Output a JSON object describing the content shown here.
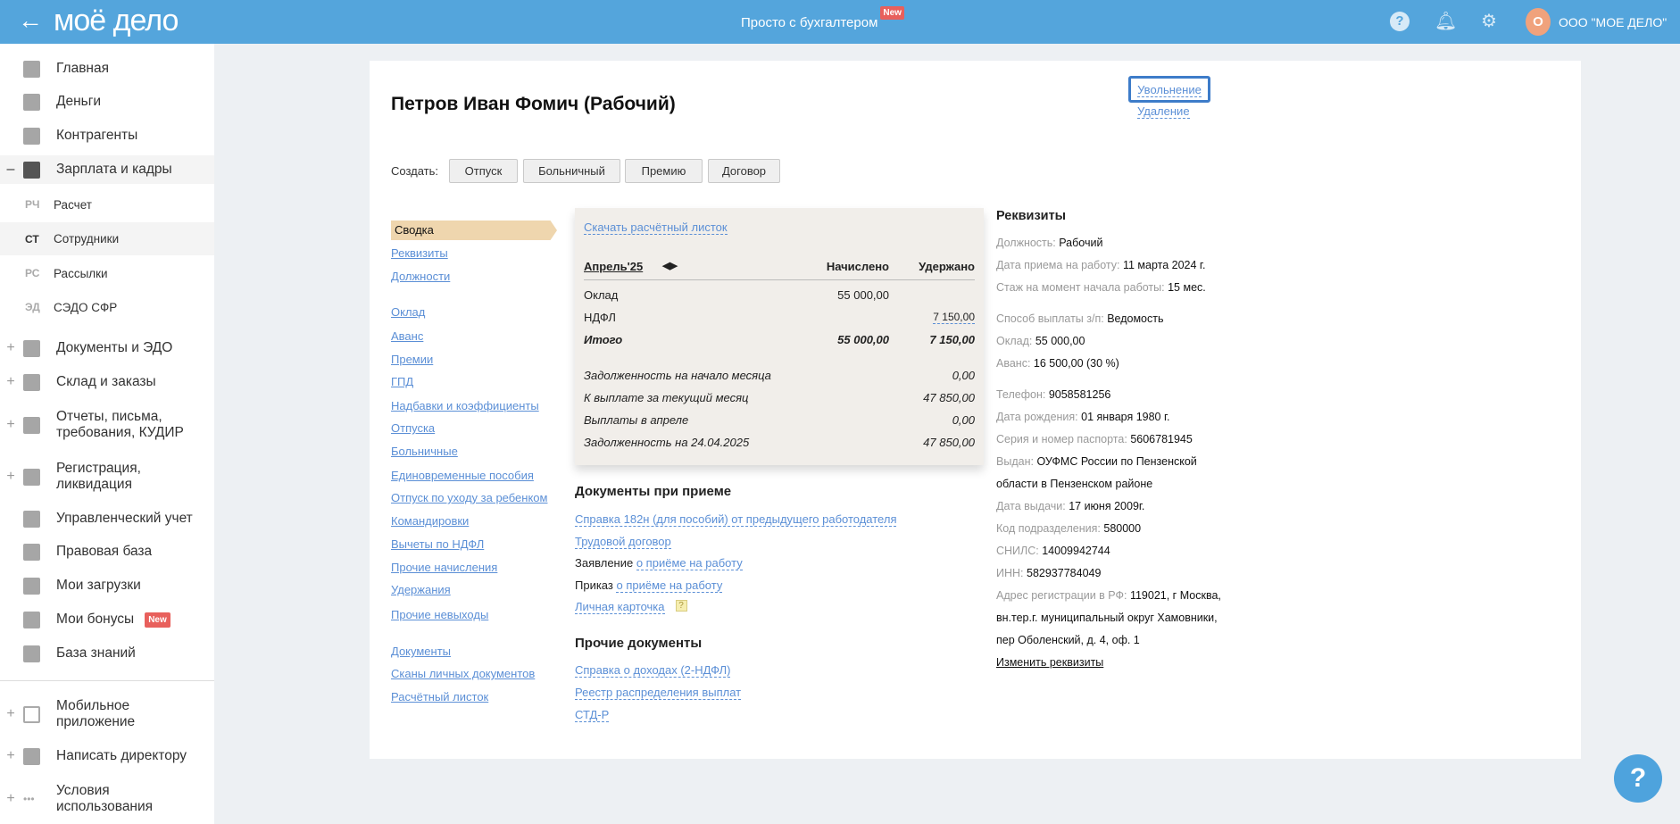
{
  "header": {
    "logo": "моё дело",
    "promo": "Просто с бухгалтером",
    "promo_badge": "New",
    "avatar_letter": "О",
    "org": "ООО \"МОЕ ДЕЛО\"",
    "color": "#54a5dc"
  },
  "sidebar": {
    "items": [
      {
        "label": "Главная"
      },
      {
        "label": "Деньги"
      },
      {
        "label": "Контрагенты"
      },
      {
        "label": "Зарплата и кадры",
        "prefix": "–"
      },
      {
        "abbr": "РЧ",
        "label": "Расчет"
      },
      {
        "abbr": "СТ",
        "label": "Сотрудники"
      },
      {
        "abbr": "РС",
        "label": "Рассылки"
      },
      {
        "abbr": "ЭД",
        "label": "СЭДО СФР"
      },
      {
        "label": "Документы и ЭДО",
        "prefix": "+"
      },
      {
        "label": "Склад и заказы",
        "prefix": "+"
      },
      {
        "label": "Отчеты, письма,",
        "label2": "требования, КУДИР",
        "prefix": "+"
      },
      {
        "label": "Регистрация,",
        "label2": "ликвидация",
        "prefix": "+"
      },
      {
        "label": "Управленческий учет"
      },
      {
        "label": "Правовая база"
      },
      {
        "label": "Мои загрузки"
      },
      {
        "label": "Мои бонусы",
        "badge": "New"
      },
      {
        "label": "База знаний"
      },
      {
        "label": "Мобильное",
        "label2": "приложение",
        "prefix": "+"
      },
      {
        "label": "Написать директору",
        "prefix": "+"
      },
      {
        "label": "Условия",
        "label2": "использования",
        "prefix": "+"
      }
    ]
  },
  "page": {
    "title": "Петров Иван Фомич (Рабочий)",
    "dismiss": "Увольнение",
    "delete": "Удаление",
    "create_label": "Создать:",
    "create_buttons": [
      "Отпуск",
      "Больничный",
      "Премию",
      "Договор"
    ]
  },
  "nav": {
    "active": "Сводка",
    "items": [
      "Реквизиты",
      "Должности",
      "Оклад",
      "Аванс",
      "Премии",
      "ГПД",
      "Надбавки и коэффициенты",
      "Отпуска",
      "Больничные",
      "Единовременные пособия",
      "Отпуск по уходу за ребенком",
      "Командировки",
      "Вычеты по НДФЛ",
      "Прочие начисления",
      "Удержания",
      "Прочие невыходы",
      "Документы",
      "Сканы личных документов",
      "Расчётный листок"
    ]
  },
  "summary": {
    "download": "Скачать расчётный листок",
    "month": "Апрель'25",
    "col1": "Начислено",
    "col2": "Удержано",
    "rows": [
      {
        "label": "Оклад",
        "accrued": "55 000,00",
        "withheld": ""
      },
      {
        "label": "НДФЛ",
        "accrued": "",
        "withheld": "7 150,00"
      },
      {
        "label": "Итого",
        "accrued": "55 000,00",
        "withheld": "7 150,00"
      }
    ],
    "totals": [
      {
        "label": "Задолженность на начало месяца",
        "value": "0,00"
      },
      {
        "label": "К выплате за текущий месяц",
        "value": "47 850,00"
      },
      {
        "label": "Выплаты в апреле",
        "value": "0,00"
      },
      {
        "label": "Задолженность на 24.04.2025",
        "value": "47 850,00"
      }
    ]
  },
  "hire_docs": {
    "title": "Документы при приеме",
    "items": [
      {
        "link": "Справка 182н (для пособий) от предыдущего работодателя"
      },
      {
        "link": "Трудовой договор"
      },
      {
        "prefix": "Заявление",
        "link": "о приёме на работу"
      },
      {
        "prefix": "Приказ",
        "link": "о приёме на работу"
      },
      {
        "link": "Личная карточка",
        "hint": "?"
      }
    ]
  },
  "other_docs": {
    "title": "Прочие документы",
    "items": [
      "Справка о доходах (2-НДФЛ)",
      "Реестр распределения выплат",
      "СТД-Р"
    ]
  },
  "requisites": {
    "title": "Реквизиты",
    "rows": [
      {
        "k": "Должность:",
        "v": "Рабочий"
      },
      {
        "k": "Дата приема на работу:",
        "v": "11 марта 2024 г."
      },
      {
        "k": "Стаж на момент начала работы:",
        "v": "15 мес."
      },
      {
        "k": "Способ выплаты з/п:",
        "v": "Ведомость"
      },
      {
        "k": "Оклад:",
        "v": "55 000,00"
      },
      {
        "k": "Аванс:",
        "v": "16 500,00 (30 %)"
      },
      {
        "k": "Телефон:",
        "v": "9058581256"
      },
      {
        "k": "Дата рождения:",
        "v": "01 января 1980 г."
      },
      {
        "k": "Серия и номер паспорта:",
        "v": "5606781945"
      },
      {
        "k": "Выдан:",
        "v": "ОУФМС России по Пензенской",
        "v2": "области в Пензенском районе"
      },
      {
        "k": "Дата выдачи:",
        "v": "17 июня 2009г."
      },
      {
        "k": "Код подразделения:",
        "v": "580000"
      },
      {
        "k": "СНИЛС:",
        "v": "14009942744"
      },
      {
        "k": "ИНН:",
        "v": "582937784049"
      },
      {
        "k": "Адрес регистрации в РФ:",
        "v": "119021, г Москва,",
        "v2": "вн.тер.г. муниципальный округ Хамовники,",
        "v3": "пер Оболенский, д. 4, оф. 1"
      }
    ],
    "edit": "Изменить реквизиты"
  },
  "help_fab": "?"
}
